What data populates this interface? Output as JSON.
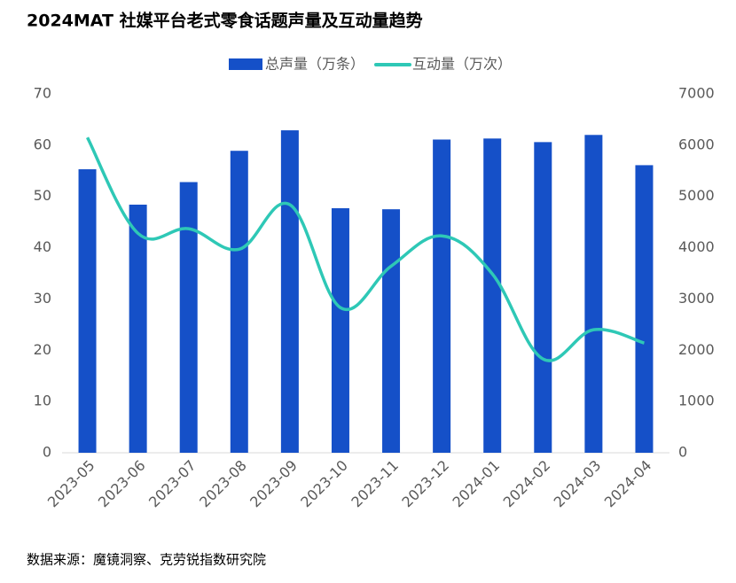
{
  "chart_data": {
    "type": "bar-line",
    "title": "2024MAT 社媒平台老式零食话题声量及互动量趋势",
    "source": "数据来源：魔镜洞察、克劳锐指数研究院",
    "categories": [
      "2023-05",
      "2023-06",
      "2023-07",
      "2023-08",
      "2023-09",
      "2023-10",
      "2023-11",
      "2023-12",
      "2024-01",
      "2024-02",
      "2024-03",
      "2024-04"
    ],
    "series": [
      {
        "name": "总声量（万条）",
        "type": "bar",
        "color": "#1550c8",
        "values": [
          55.3,
          48.4,
          52.8,
          58.9,
          62.9,
          47.7,
          47.5,
          61.1,
          61.3,
          60.6,
          62.0,
          56.1
        ]
      },
      {
        "name": "互动量（万次）",
        "type": "line",
        "axis": "y2",
        "color": "#2ec8b6",
        "values": [
          6150,
          4280,
          4370,
          3970,
          4840,
          2830,
          3640,
          4230,
          3490,
          1830,
          2400,
          2140
        ]
      }
    ],
    "ylim": [
      0,
      70
    ],
    "yticks": [
      0,
      10,
      20,
      30,
      40,
      50,
      60,
      70
    ],
    "y2lim": [
      0,
      7000
    ],
    "y2ticks": [
      0,
      1000,
      2000,
      3000,
      4000,
      5000,
      6000,
      7000
    ],
    "legend": "top"
  }
}
